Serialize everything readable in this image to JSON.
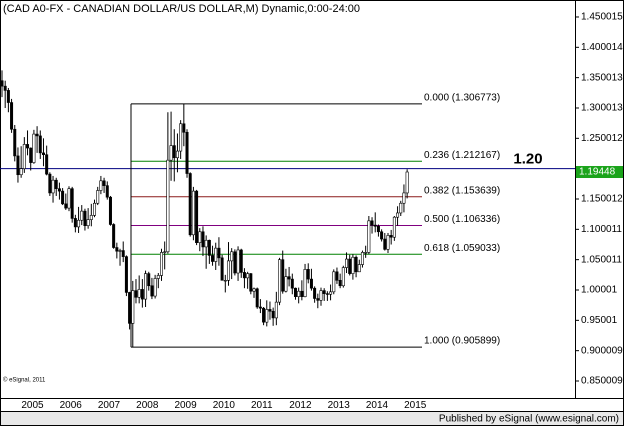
{
  "chart_data": {
    "type": "candlestick",
    "title": "(CAD A0-FX - CANADIAN DOLLAR/US DOLLAR,M) Dynamic,0:00-24:00",
    "watermark": "© eSignal, 2011",
    "footer": "Published by eSignal (www.esignal.com)",
    "categories": [
      null,
      null,
      null,
      null,
      null,
      null,
      null,
      "2005",
      null,
      null,
      null,
      null,
      null,
      null,
      null,
      null,
      null,
      null,
      null,
      "2006",
      null,
      null,
      null,
      null,
      null,
      null,
      null,
      null,
      null,
      null,
      null,
      "2007",
      null,
      null,
      null,
      null,
      null,
      null,
      null,
      null,
      null,
      null,
      null,
      "2008",
      null,
      null,
      null,
      null,
      null,
      null,
      null,
      null,
      null,
      null,
      null,
      "2009",
      null,
      null,
      null,
      null,
      null,
      null,
      null,
      null,
      null,
      null,
      null,
      "2010",
      null,
      null,
      null,
      null,
      null,
      null,
      null,
      null,
      null,
      null,
      null,
      "2011",
      null,
      null,
      null,
      null,
      null,
      null,
      null,
      null,
      null,
      null,
      null,
      "2012",
      null,
      null,
      null,
      null,
      null,
      null,
      null,
      null,
      null,
      null,
      null,
      "2013",
      null,
      null,
      null,
      null,
      null,
      null,
      null,
      null,
      null,
      null,
      null,
      "2014",
      null,
      null,
      null,
      null,
      null,
      null,
      null,
      null,
      null,
      null,
      null,
      "2015"
    ],
    "open": [
      1.345,
      1.336,
      1.329,
      1.309,
      1.265,
      1.221,
      1.19,
      1.2,
      1.24,
      1.234,
      1.21,
      1.257,
      1.254,
      1.226,
      1.223,
      1.191,
      1.16,
      1.181,
      1.167,
      1.163,
      1.142,
      1.135,
      1.167,
      1.118,
      1.104,
      1.115,
      1.13,
      1.106,
      1.116,
      1.123,
      1.143,
      1.164,
      1.18,
      1.172,
      1.153,
      1.108,
      1.07,
      1.064,
      1.065,
      1.055,
      0.996,
      0.945,
      0.999,
      0.988,
      1.001,
      0.985,
      1.027,
      1.007,
      0.99,
      1.019,
      1.024,
      1.062,
      1.063,
      1.214,
      1.238,
      1.218,
      1.229,
      1.274,
      1.26,
      1.192,
      1.091,
      1.163,
      1.078,
      1.096,
      1.071,
      1.082,
      1.057,
      1.047,
      1.069,
      1.053,
      1.016,
      1.016,
      1.048,
      1.063,
      1.028,
      1.066,
      1.029,
      1.02,
      1.027,
      0.998,
      1.002,
      0.972,
      0.97,
      0.947,
      0.968,
      0.965,
      0.954,
      0.98,
      1.05,
      0.998,
      1.022,
      1.018,
      1.003,
      0.989,
      0.998,
      0.989,
      1.034,
      1.018,
      1.003,
      0.986,
      0.983,
      0.999,
      0.994,
      0.993,
      0.997,
      1.03,
      1.016,
      1.007,
      1.037,
      1.051,
      1.027,
      1.054,
      1.03,
      1.042,
      1.062,
      1.062,
      1.114,
      1.107,
      1.105,
      1.096,
      1.084,
      1.067,
      1.09,
      1.087,
      1.12,
      1.127,
      1.143,
      1.16
    ],
    "high": [
      1.362,
      1.345,
      1.333,
      1.315,
      1.272,
      1.235,
      1.237,
      1.252,
      1.263,
      1.235,
      1.264,
      1.27,
      1.263,
      1.25,
      1.238,
      1.194,
      1.188,
      1.185,
      1.177,
      1.168,
      1.159,
      1.171,
      1.17,
      1.124,
      1.137,
      1.14,
      1.134,
      1.135,
      1.142,
      1.149,
      1.17,
      1.188,
      1.185,
      1.179,
      1.155,
      1.11,
      1.078,
      1.068,
      1.08,
      1.057,
      0.997,
      1.015,
      1.018,
      1.024,
      1.018,
      1.032,
      1.03,
      1.02,
      1.025,
      1.028,
      1.068,
      1.08,
      1.293,
      1.294,
      1.265,
      1.258,
      1.28,
      1.306773,
      1.265,
      1.194,
      1.17,
      1.165,
      1.102,
      1.105,
      1.09,
      1.083,
      1.073,
      1.078,
      1.087,
      1.058,
      1.025,
      1.079,
      1.069,
      1.067,
      1.072,
      1.068,
      1.036,
      1.03,
      1.028,
      1.004,
      1.004,
      0.985,
      0.972,
      0.983,
      0.981,
      0.971,
      0.997,
      1.053,
      1.065,
      1.035,
      1.038,
      1.027,
      1.004,
      1.004,
      1.016,
      1.043,
      1.044,
      1.035,
      1.006,
      0.994,
      1.004,
      1.003,
      0.998,
      1.009,
      1.034,
      1.037,
      1.027,
      1.04,
      1.062,
      1.058,
      1.059,
      1.057,
      1.05,
      1.065,
      1.073,
      1.122,
      1.12,
      1.128,
      1.108,
      1.1,
      1.094,
      1.094,
      1.099,
      1.122,
      1.138,
      1.147,
      1.174,
      1.199
    ],
    "low": [
      1.318,
      1.3,
      1.293,
      1.259,
      1.212,
      1.177,
      1.185,
      1.193,
      1.222,
      1.197,
      1.208,
      1.226,
      1.216,
      1.204,
      1.189,
      1.155,
      1.144,
      1.155,
      1.149,
      1.14,
      1.132,
      1.13,
      1.111,
      1.095,
      1.094,
      1.107,
      1.098,
      1.101,
      1.105,
      1.12,
      1.14,
      1.158,
      1.16,
      1.149,
      1.106,
      1.068,
      1.052,
      1.04,
      1.046,
      0.99,
      0.935,
      0.905899,
      0.978,
      0.978,
      0.971,
      0.972,
      0.999,
      0.985,
      0.986,
      1.003,
      1.015,
      1.034,
      1.06,
      1.18,
      1.179,
      1.194,
      1.216,
      1.237,
      1.185,
      1.088,
      1.082,
      1.074,
      1.064,
      1.056,
      1.035,
      1.043,
      1.04,
      1.033,
      1.04,
      1.016,
      0.996,
      1.007,
      1.018,
      1.024,
      1.015,
      1.02,
      1.003,
      1.002,
      0.993,
      0.987,
      0.969,
      0.962,
      0.942,
      0.94,
      0.951,
      0.941,
      0.942,
      0.975,
      0.994,
      0.996,
      1.006,
      0.993,
      0.984,
      0.978,
      0.983,
      0.988,
      1.011,
      0.999,
      0.979,
      0.97,
      0.974,
      0.982,
      0.982,
      0.983,
      0.993,
      1.01,
      1.003,
      1.004,
      1.028,
      1.024,
      1.017,
      1.021,
      1.03,
      1.037,
      1.053,
      1.059,
      1.093,
      1.095,
      1.088,
      1.08,
      1.065,
      1.061,
      1.075,
      1.081,
      1.106,
      1.122,
      1.128,
      1.151
    ],
    "close": [
      1.336,
      1.329,
      1.309,
      1.265,
      1.221,
      1.19,
      1.2,
      1.24,
      1.234,
      1.21,
      1.257,
      1.254,
      1.226,
      1.223,
      1.191,
      1.16,
      1.181,
      1.167,
      1.163,
      1.142,
      1.135,
      1.167,
      1.118,
      1.104,
      1.115,
      1.13,
      1.106,
      1.116,
      1.123,
      1.143,
      1.164,
      1.18,
      1.172,
      1.153,
      1.108,
      1.07,
      1.064,
      1.065,
      1.055,
      0.996,
      0.945,
      0.999,
      0.988,
      1.001,
      0.985,
      1.027,
      1.007,
      0.99,
      1.019,
      1.024,
      1.062,
      1.063,
      1.214,
      1.238,
      1.218,
      1.229,
      1.274,
      1.26,
      1.192,
      1.091,
      1.163,
      1.078,
      1.096,
      1.071,
      1.082,
      1.057,
      1.047,
      1.069,
      1.053,
      1.016,
      1.016,
      1.048,
      1.063,
      1.028,
      1.066,
      1.029,
      1.02,
      1.027,
      0.998,
      1.002,
      0.972,
      0.97,
      0.947,
      0.968,
      0.965,
      0.954,
      0.98,
      1.05,
      0.998,
      1.022,
      1.018,
      1.003,
      0.989,
      0.998,
      0.989,
      1.034,
      1.018,
      1.003,
      0.986,
      0.983,
      0.999,
      0.994,
      0.993,
      0.997,
      1.03,
      1.016,
      1.007,
      1.037,
      1.051,
      1.027,
      1.054,
      1.03,
      1.042,
      1.062,
      1.062,
      1.114,
      1.107,
      1.105,
      1.096,
      1.084,
      1.067,
      1.09,
      1.087,
      1.12,
      1.127,
      1.143,
      1.16,
      1.19448
    ],
    "up_color": "#ffffff",
    "down_color": "#000000",
    "ylim": [
      0.822,
      1.478
    ],
    "yticks": [
      0.850009,
      0.900009,
      0.95001,
      1.00001,
      1.050011,
      1.100011,
      1.150012,
      1.250012,
      1.300013,
      1.350013,
      1.400014,
      1.450015
    ],
    "fib_levels": [
      {
        "label": "0.000 (1.306773)",
        "value": 1.306773,
        "color": "#000000"
      },
      {
        "label": "0.236 (1.212167)",
        "value": 1.212167,
        "color": "#008000"
      },
      {
        "label": "0.382 (1.153639)",
        "value": 1.153639,
        "color": "#8b1a1a"
      },
      {
        "label": "0.500 (1.106336)",
        "value": 1.106336,
        "color": "#800080"
      },
      {
        "label": "0.618 (1.059033)",
        "value": 1.059033,
        "color": "#008000"
      },
      {
        "label": "1.000 (0.905899)",
        "value": 0.905899,
        "color": "#000000"
      }
    ],
    "reference_line": {
      "label": "1.20",
      "value": 1.2,
      "color": "#000080"
    },
    "last_price": 1.19448,
    "last_price_color": "#1aa31a"
  }
}
